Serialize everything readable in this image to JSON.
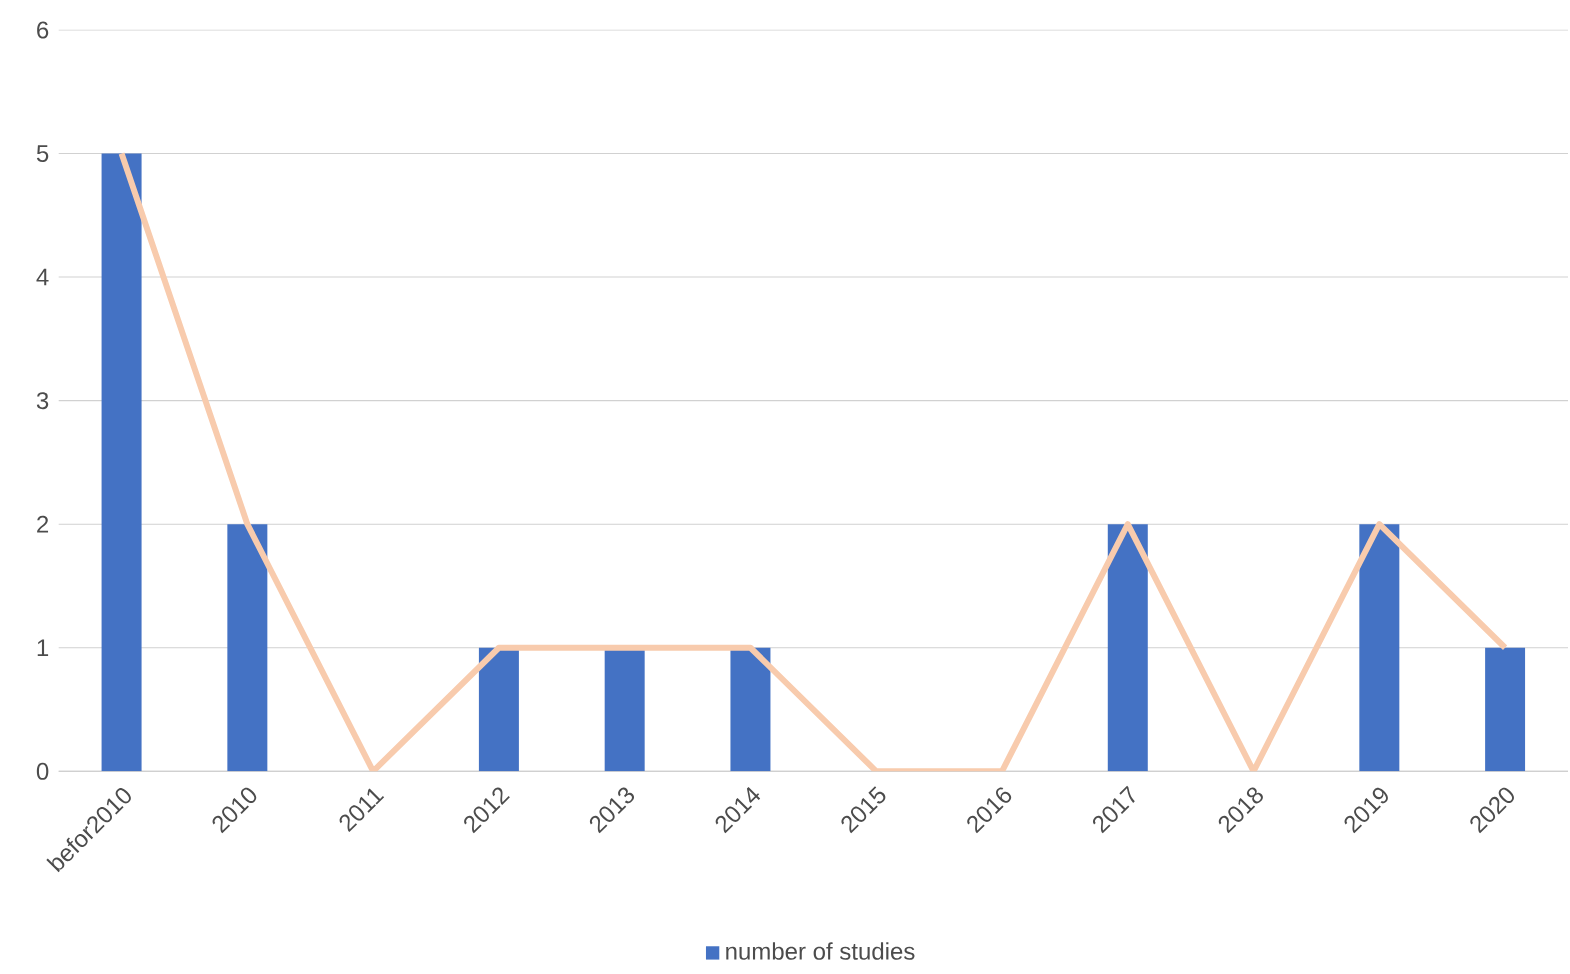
{
  "chart_data": {
    "type": "bar",
    "categories": [
      "befor2010",
      "2010",
      "2011",
      "2012",
      "2013",
      "2014",
      "2015",
      "2016",
      "2017",
      "2018",
      "2019",
      "2020"
    ],
    "series": [
      {
        "name": "number of studies",
        "color": "#4472c4",
        "values": [
          5,
          2,
          0,
          1,
          1,
          1,
          0,
          0,
          2,
          0,
          2,
          1
        ]
      },
      {
        "type": "line",
        "color": "#f8cbad",
        "values": [
          5,
          2,
          0,
          1,
          1,
          1,
          0,
          0,
          2,
          0,
          2,
          1
        ]
      }
    ],
    "ylim": [
      0,
      6
    ],
    "yticks": [
      0,
      1,
      2,
      3,
      4,
      5,
      6
    ],
    "grid": "y",
    "legend": "bottom"
  }
}
